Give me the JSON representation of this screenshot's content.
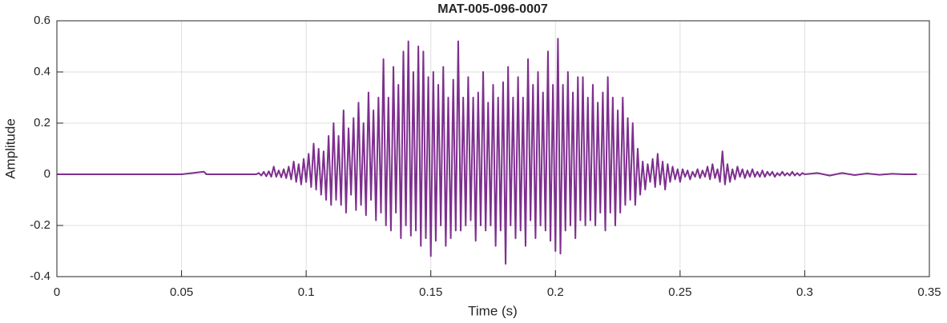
{
  "chart_data": {
    "type": "line",
    "title": "MAT-005-096-0007",
    "xlabel": "Time (s)",
    "ylabel": "Amplitude",
    "xlim": [
      0,
      0.35
    ],
    "ylim": [
      -0.4,
      0.6
    ],
    "xticks": [
      0,
      0.05,
      0.1,
      0.15,
      0.2,
      0.25,
      0.3,
      0.35
    ],
    "yticks": [
      -0.4,
      -0.2,
      {
        "value": 0,
        "label": "0"
      },
      0.2,
      0.4,
      0.6
    ],
    "grid": true,
    "series": [
      {
        "color": "#7e2f8e",
        "x": [
          0,
          0.01,
          0.02,
          0.03,
          0.04,
          0.05,
          0.059,
          0.06,
          0.07,
          0.08,
          0.081,
          0.082,
          0.083,
          0.084,
          0.085,
          0.086,
          0.087,
          0.088,
          0.089,
          0.09,
          0.091,
          0.092,
          0.093,
          0.094,
          0.095,
          0.096,
          0.097,
          0.098,
          0.099,
          0.1,
          0.101,
          0.102,
          0.103,
          0.104,
          0.105,
          0.106,
          0.107,
          0.108,
          0.109,
          0.11,
          0.111,
          0.112,
          0.113,
          0.114,
          0.115,
          0.116,
          0.117,
          0.118,
          0.119,
          0.12,
          0.121,
          0.122,
          0.123,
          0.124,
          0.125,
          0.126,
          0.127,
          0.128,
          0.129,
          0.13,
          0.131,
          0.132,
          0.133,
          0.134,
          0.135,
          0.136,
          0.137,
          0.138,
          0.139,
          0.14,
          0.141,
          0.142,
          0.143,
          0.144,
          0.145,
          0.146,
          0.147,
          0.148,
          0.149,
          0.15,
          0.151,
          0.152,
          0.153,
          0.154,
          0.155,
          0.156,
          0.157,
          0.158,
          0.159,
          0.16,
          0.161,
          0.162,
          0.163,
          0.164,
          0.165,
          0.166,
          0.167,
          0.168,
          0.169,
          0.17,
          0.171,
          0.172,
          0.173,
          0.174,
          0.175,
          0.176,
          0.177,
          0.178,
          0.179,
          0.18,
          0.181,
          0.182,
          0.183,
          0.184,
          0.185,
          0.186,
          0.187,
          0.188,
          0.189,
          0.19,
          0.191,
          0.192,
          0.193,
          0.194,
          0.195,
          0.196,
          0.197,
          0.198,
          0.199,
          0.2,
          0.201,
          0.202,
          0.203,
          0.204,
          0.205,
          0.206,
          0.207,
          0.208,
          0.209,
          0.21,
          0.211,
          0.212,
          0.213,
          0.214,
          0.215,
          0.216,
          0.217,
          0.218,
          0.219,
          0.22,
          0.221,
          0.222,
          0.223,
          0.224,
          0.225,
          0.226,
          0.227,
          0.228,
          0.229,
          0.23,
          0.231,
          0.232,
          0.233,
          0.234,
          0.235,
          0.236,
          0.237,
          0.238,
          0.239,
          0.24,
          0.241,
          0.242,
          0.243,
          0.244,
          0.245,
          0.246,
          0.247,
          0.248,
          0.249,
          0.25,
          0.251,
          0.252,
          0.253,
          0.254,
          0.255,
          0.256,
          0.257,
          0.258,
          0.259,
          0.26,
          0.261,
          0.262,
          0.263,
          0.264,
          0.265,
          0.266,
          0.267,
          0.268,
          0.269,
          0.27,
          0.271,
          0.272,
          0.273,
          0.274,
          0.275,
          0.276,
          0.277,
          0.278,
          0.279,
          0.28,
          0.281,
          0.282,
          0.283,
          0.284,
          0.285,
          0.286,
          0.287,
          0.288,
          0.289,
          0.29,
          0.291,
          0.292,
          0.293,
          0.294,
          0.295,
          0.296,
          0.297,
          0.298,
          0.299,
          0.3,
          0.305,
          0.31,
          0.315,
          0.32,
          0.325,
          0.33,
          0.335,
          0.34,
          0.345
        ],
        "values": [
          0,
          0,
          0,
          0,
          0,
          0,
          0.01,
          0,
          0,
          0,
          0.005,
          -0.005,
          0.01,
          -0.008,
          0.012,
          -0.01,
          0.03,
          -0.01,
          0.015,
          -0.012,
          0.02,
          -0.015,
          0.03,
          -0.02,
          0.05,
          -0.03,
          0.04,
          -0.04,
          0.06,
          -0.03,
          0.08,
          -0.05,
          0.12,
          -0.06,
          0.1,
          -0.08,
          0.09,
          -0.1,
          0.15,
          -0.12,
          0.2,
          -0.1,
          0.15,
          -0.12,
          0.25,
          -0.15,
          0.18,
          -0.08,
          0.22,
          -0.14,
          0.28,
          -0.12,
          0.2,
          -0.16,
          0.32,
          -0.1,
          0.25,
          -0.18,
          0.3,
          -0.15,
          0.45,
          -0.2,
          0.3,
          -0.22,
          0.42,
          -0.15,
          0.35,
          -0.25,
          0.48,
          -0.2,
          0.52,
          -0.24,
          0.4,
          -0.22,
          0.5,
          -0.28,
          0.48,
          -0.25,
          0.38,
          -0.32,
          0.4,
          -0.26,
          0.35,
          -0.2,
          0.42,
          -0.28,
          0.3,
          -0.25,
          0.37,
          -0.22,
          0.52,
          -0.22,
          0.3,
          -0.2,
          0.38,
          -0.18,
          0.3,
          -0.26,
          0.32,
          -0.2,
          0.4,
          -0.22,
          0.28,
          -0.2,
          0.35,
          -0.28,
          0.3,
          -0.22,
          0.36,
          -0.35,
          0.42,
          -0.2,
          0.3,
          -0.25,
          0.38,
          -0.22,
          0.3,
          -0.28,
          0.45,
          -0.18,
          0.35,
          -0.25,
          0.4,
          -0.2,
          0.32,
          -0.22,
          0.48,
          -0.26,
          0.35,
          -0.3,
          0.53,
          -0.31,
          0.35,
          -0.22,
          0.4,
          -0.2,
          0.32,
          -0.25,
          0.38,
          -0.18,
          0.38,
          -0.2,
          0.3,
          -0.18,
          0.35,
          -0.2,
          0.28,
          -0.15,
          0.32,
          -0.22,
          0.38,
          -0.15,
          0.3,
          -0.2,
          0.25,
          -0.15,
          0.3,
          -0.12,
          0.22,
          -0.1,
          0.2,
          -0.12,
          0.1,
          -0.08,
          0.05,
          -0.06,
          0.04,
          -0.03,
          0.06,
          -0.05,
          0.08,
          -0.04,
          0.05,
          -0.06,
          0.04,
          -0.03,
          0.03,
          -0.02,
          0.02,
          -0.03,
          0.02,
          -0.01,
          0.015,
          -0.02,
          0.01,
          -0.01,
          0.02,
          -0.015,
          0.015,
          -0.01,
          0.03,
          -0.02,
          0.04,
          -0.015,
          0.02,
          -0.03,
          0.09,
          -0.04,
          0.04,
          -0.03,
          0.02,
          -0.02,
          0.03,
          -0.01,
          0.02,
          -0.015,
          0.015,
          -0.01,
          0.02,
          -0.01,
          0.01,
          -0.01,
          0.015,
          -0.01,
          0.01,
          -0.005,
          0.01,
          -0.01,
          0.005,
          -0.005,
          0.01,
          -0.005,
          0.005,
          -0.005,
          0.01,
          -0.005,
          0.005,
          -0.005,
          0.005,
          0,
          0.005,
          -0.005,
          0.005,
          -0.003,
          0.003,
          -0.002,
          0.002,
          0,
          0
        ]
      }
    ]
  }
}
